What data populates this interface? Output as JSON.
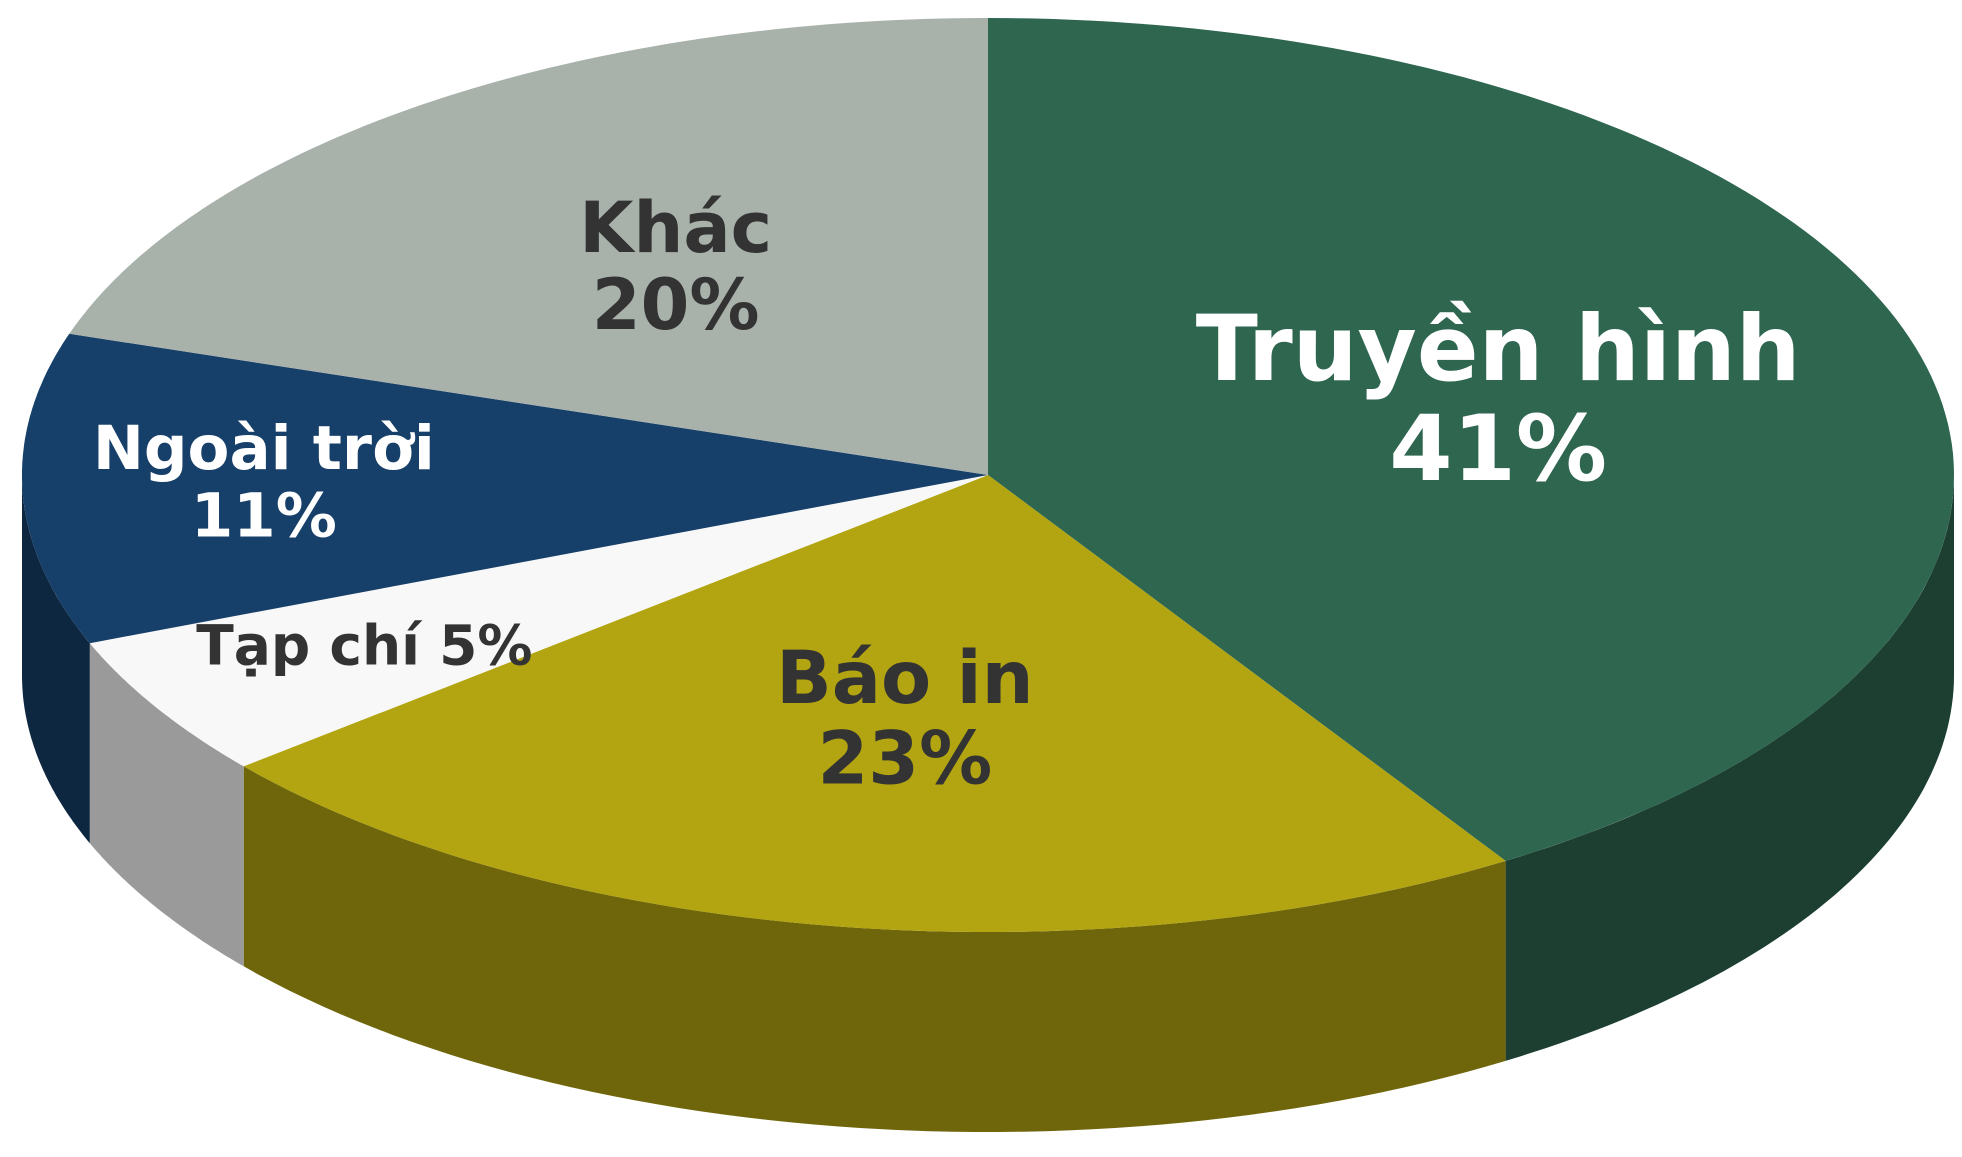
{
  "chart_data": {
    "type": "pie3d",
    "categories": [
      "Truyền hình",
      "Báo in",
      "Tạp chí",
      "Ngoài trời",
      "Khác"
    ],
    "values": [
      41,
      23,
      5,
      11,
      20
    ],
    "value_labels": [
      "41%",
      "23%",
      "5%",
      "11%",
      "20%"
    ],
    "colors": [
      "#2e6650",
      "#b3a511",
      "#f8f8f8",
      "#163f69",
      "#a8b1aa"
    ]
  }
}
